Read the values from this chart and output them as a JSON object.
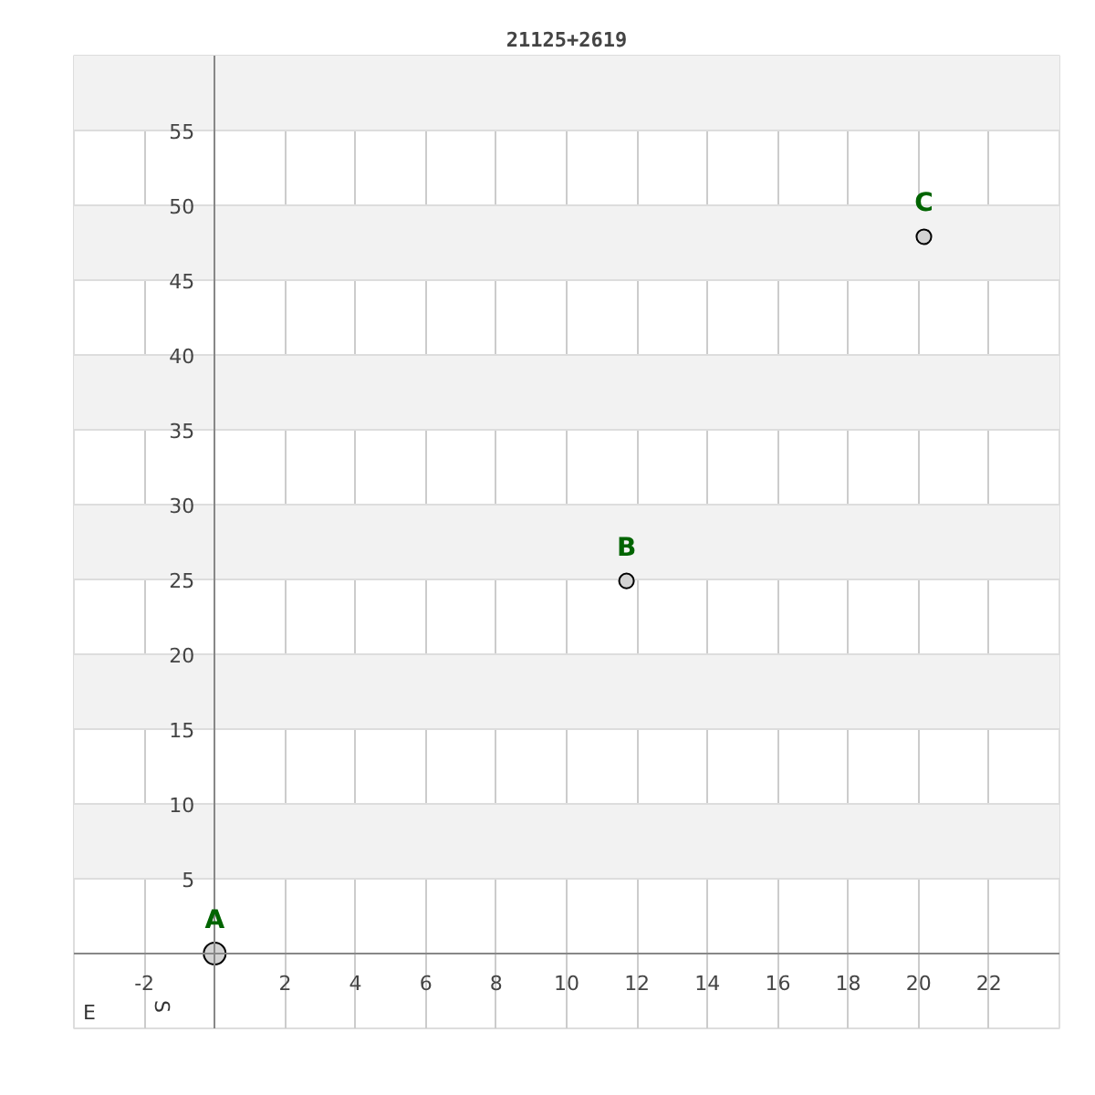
{
  "chart_data": {
    "type": "bubble",
    "title": "21125+2619",
    "x": [
      0,
      11.7,
      20.15
    ],
    "series": [
      {
        "color": "#d3d3d3",
        "values": [
          0,
          24.9,
          47.9
        ],
        "sizes": [
          1,
          0.45,
          0.45
        ]
      }
    ],
    "xlim": [
      -4,
      24
    ],
    "ylim": [
      -5,
      60
    ],
    "xticks": [
      -2,
      2,
      4,
      6,
      8,
      10,
      12,
      14,
      16,
      18,
      20,
      22
    ],
    "yticks": [
      5,
      10,
      15,
      20,
      25,
      30,
      35,
      40,
      45,
      50,
      55
    ],
    "grid": true,
    "marker": "circle",
    "annotations": [
      {
        "text": "A",
        "x": 0,
        "y": 0
      },
      {
        "text": "B",
        "x": 11.7,
        "y": 24.9
      },
      {
        "text": "C",
        "x": 20.15,
        "y": 47.9
      },
      "E",
      "S"
    ]
  }
}
